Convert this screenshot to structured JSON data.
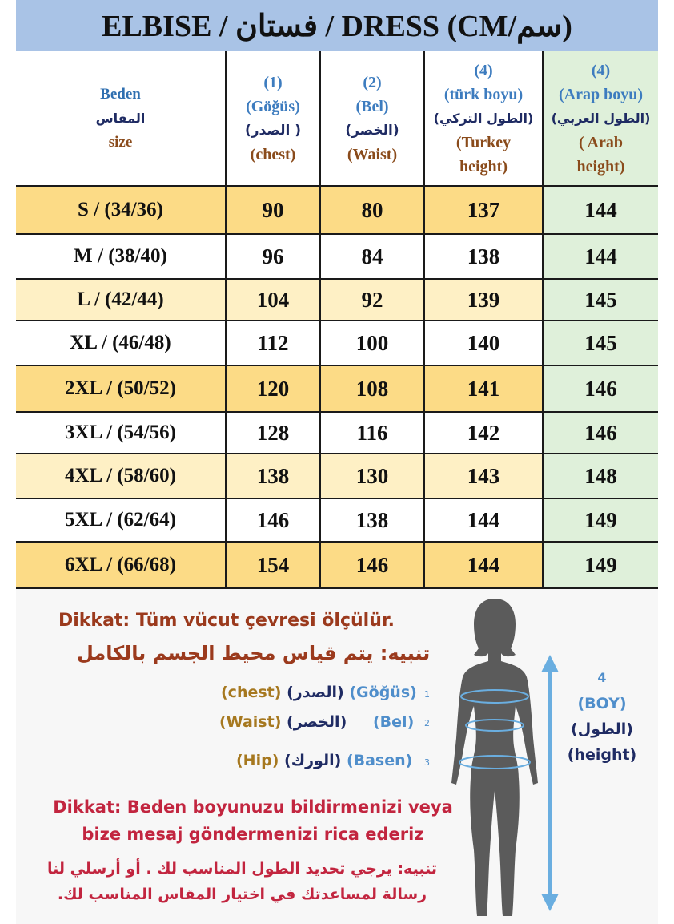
{
  "title": "ELBISE / فستان / DRESS (CM/سم)",
  "table": {
    "headers": {
      "size": {
        "line1": "Beden",
        "line2": "المقاس",
        "line3": "size"
      },
      "chest": {
        "num": "(1)",
        "line1": "(Göğüs)",
        "line2": "(الصدر )",
        "line3": "(chest)"
      },
      "waist": {
        "num": "(2)",
        "line1": "(Bel)",
        "line2": "(الخصر)",
        "line3": "(Waist)"
      },
      "turk": {
        "num": "(4)",
        "line1": "(türk boyu)",
        "line2": "(الطول التركي)",
        "line3": "(Turkey",
        "line4": "height)"
      },
      "arab": {
        "num": "(4)",
        "line1": "(Arap boyu)",
        "line2": "(الطول العربي)",
        "line3": "( Arab",
        "line4": "height)"
      }
    },
    "rows": [
      {
        "size": "S / (34/36)",
        "chest": "90",
        "waist": "80",
        "turk": "137",
        "arab": "144"
      },
      {
        "size": "M / (38/40)",
        "chest": "96",
        "waist": "84",
        "turk": "138",
        "arab": "144"
      },
      {
        "size": "L / (42/44)",
        "chest": "104",
        "waist": "92",
        "turk": "139",
        "arab": "145"
      },
      {
        "size": "XL / (46/48)",
        "chest": "112",
        "waist": "100",
        "turk": "140",
        "arab": "145"
      },
      {
        "size": "2XL / (50/52)",
        "chest": "120",
        "waist": "108",
        "turk": "141",
        "arab": "146"
      },
      {
        "size": "3XL / (54/56)",
        "chest": "128",
        "waist": "116",
        "turk": "142",
        "arab": "146"
      },
      {
        "size": "4XL / (58/60)",
        "chest": "138",
        "waist": "130",
        "turk": "143",
        "arab": "148"
      },
      {
        "size": "5XL / (62/64)",
        "chest": "146",
        "waist": "138",
        "turk": "144",
        "arab": "149"
      },
      {
        "size": "6XL / (66/68)",
        "chest": "154",
        "waist": "146",
        "turk": "144",
        "arab": "149"
      }
    ],
    "row_colors": [
      "#fcdb86",
      "#ffffff",
      "#fef0c5",
      "#ffffff",
      "#fcdb86",
      "#ffffff",
      "#fef0c5",
      "#ffffff",
      "#fcdb86"
    ],
    "arab_color": "#dff0da"
  },
  "notes": {
    "tr_measure": "Dikkat: Tüm vücut çevresi ölçülür.",
    "ar_measure": "تنبيه: يتم قياس محيط الجسم بالكامل",
    "tr_request": "Dikkat: Beden boyunuzu bildirmenizi veya bize mesaj göndermenizi rica ederiz",
    "ar_request": "تنبيه: يرجي تحديد الطول المناسب لك . أو أرسلي لنا رسالة لمساعدتك في اختيار المقاس المناسب لك."
  },
  "legend": [
    {
      "en": "(chest)",
      "ar": "(الصدر)",
      "tr": "(Göğüs)",
      "num": "1"
    },
    {
      "en": "(Waist)",
      "ar": "(الخصر)",
      "tr": "(Bel)",
      "num": "2"
    },
    {
      "en": "(Hip)",
      "ar": "(الورك)",
      "tr": "(Basen)",
      "num": "3"
    }
  ],
  "boy": {
    "num": "4",
    "tr": "(BOY)",
    "ar": "(الطول)",
    "en": "(height)"
  },
  "colors": {
    "title_bg": "#a9c3e6",
    "arrow": "#6aaee0",
    "figure": "#5b5b5b"
  }
}
